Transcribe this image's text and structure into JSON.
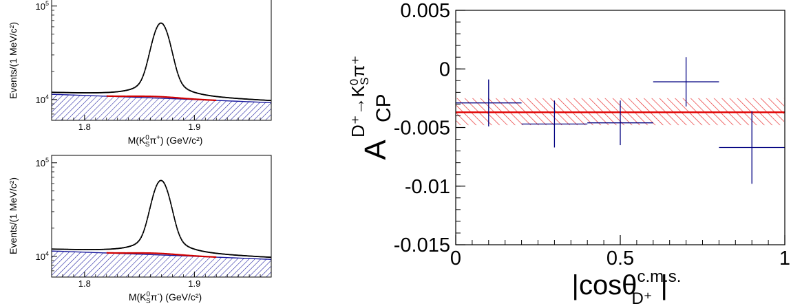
{
  "chart_data": [
    {
      "type": "line",
      "panel": "top-left",
      "ylabel": "Events/(1 MeV/c²)",
      "xlabel_main": "M(K",
      "xlabel_sup": "0",
      "xlabel_sub": "S",
      "xlabel_particle": "π",
      "xlabel_charge": "+",
      "xlabel_unit": ") (GeV/c²)",
      "xlim": [
        1.77,
        1.97
      ],
      "ylim": [
        6000,
        120000
      ],
      "yscale": "log",
      "x_ticks": [
        {
          "value": 1.8,
          "label": "1.8"
        },
        {
          "value": 1.9,
          "label": "1.9"
        }
      ],
      "y_ticks": [
        {
          "value": 10000,
          "base": "10",
          "exp": "4"
        },
        {
          "value": 100000,
          "base": "10",
          "exp": "5"
        }
      ],
      "peak": {
        "center": 1.8696,
        "amplitude": 55000,
        "sigma": 0.007,
        "baseline_start": 11800,
        "baseline_end": 9600
      },
      "series": [
        {
          "role": "data+fit",
          "color": "#000000"
        },
        {
          "role": "peaking-background",
          "color": "#d00000"
        },
        {
          "role": "combinatorial-background",
          "color": "#1a1a9e"
        }
      ]
    },
    {
      "type": "line",
      "panel": "bottom-left",
      "ylabel": "Events/(1 MeV/c²)",
      "xlabel_main": "M(K",
      "xlabel_sup": "0",
      "xlabel_sub": "S",
      "xlabel_particle": "π",
      "xlabel_charge": "-",
      "xlabel_unit": ") (GeV/c²)",
      "xlim": [
        1.77,
        1.97
      ],
      "ylim": [
        6000,
        120000
      ],
      "yscale": "log",
      "x_ticks": [
        {
          "value": 1.8,
          "label": "1.8"
        },
        {
          "value": 1.9,
          "label": "1.9"
        }
      ],
      "y_ticks": [
        {
          "value": 10000,
          "base": "10",
          "exp": "4"
        },
        {
          "value": 100000,
          "base": "10",
          "exp": "5"
        }
      ],
      "peak": {
        "center": 1.8696,
        "amplitude": 54000,
        "sigma": 0.007,
        "baseline_start": 11800,
        "baseline_end": 9600
      },
      "series": [
        {
          "role": "data+fit",
          "color": "#000000"
        },
        {
          "role": "peaking-background",
          "color": "#d00000"
        },
        {
          "role": "combinatorial-background",
          "color": "#1a1a9e"
        }
      ]
    },
    {
      "type": "scatter",
      "panel": "right",
      "ylabel_main": "A",
      "ylabel_sub": "CP",
      "ylabel_super": "D⁺→K",
      "ylabel_super_sup": "0",
      "ylabel_super_sub": "S",
      "ylabel_super_tail": "π⁺",
      "xlabel_main": "|cosθ",
      "xlabel_sup": "c.m.s.",
      "xlabel_sub": "D⁺",
      "xlabel_close": "|",
      "xlim": [
        0,
        1
      ],
      "ylim": [
        -0.015,
        0.005
      ],
      "x_ticks": [
        {
          "value": 0,
          "label": "0"
        },
        {
          "value": 0.5,
          "label": "0.5"
        },
        {
          "value": 1,
          "label": "1"
        }
      ],
      "y_ticks": [
        {
          "value": 0.005,
          "label": "0.005"
        },
        {
          "value": 0,
          "label": "0"
        },
        {
          "value": -0.005,
          "label": "-0.005"
        },
        {
          "value": -0.01,
          "label": "-0.01"
        },
        {
          "value": -0.015,
          "label": "-0.015"
        }
      ],
      "points": [
        {
          "x": 0.1,
          "xerr": 0.1,
          "y": -0.0029,
          "yerr": 0.002
        },
        {
          "x": 0.3,
          "xerr": 0.1,
          "y": -0.0047,
          "yerr": 0.002
        },
        {
          "x": 0.5,
          "xerr": 0.1,
          "y": -0.0046,
          "yerr": 0.0019
        },
        {
          "x": 0.7,
          "xerr": 0.1,
          "y": -0.0011,
          "yerr": 0.0021
        },
        {
          "x": 0.9,
          "xerr": 0.1,
          "y": -0.0067,
          "yerr": 0.0031
        }
      ],
      "fit": {
        "value": -0.0037,
        "band_low": -0.0048,
        "band_high": -0.0025
      },
      "colors": {
        "points": "#000080",
        "fit": "#e00000",
        "band": "#e83030"
      }
    }
  ]
}
